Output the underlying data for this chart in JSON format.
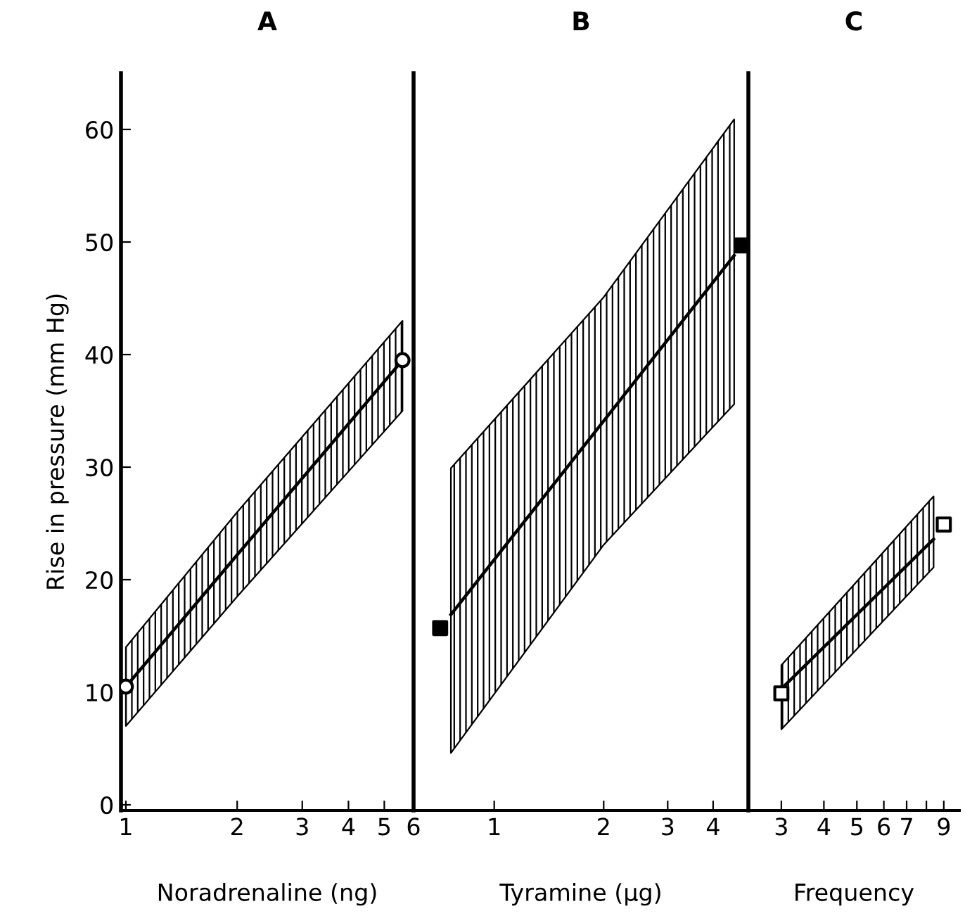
{
  "chart_data": [
    {
      "type": "line",
      "title": "A",
      "xlabel": "Noradrenaline (ng)",
      "ylabel": "Rise in pressure (mm Hg)",
      "log": "x",
      "xlim": [
        0.97,
        6
      ],
      "xticks": [
        1,
        2,
        3,
        4,
        5,
        6
      ],
      "ylim": [
        -0.5,
        65
      ],
      "yticks": [
        0,
        10,
        20,
        30,
        40,
        50,
        60
      ],
      "series": [
        {
          "type": "line",
          "color": "#000000",
          "x": [
            1,
            2,
            5.6
          ],
          "values": [
            10.5,
            22.2,
            39.5
          ],
          "lower": [
            7,
            18.5,
            35
          ],
          "upper": [
            14,
            26,
            43
          ]
        },
        {
          "type": "scatter",
          "marker": "circle",
          "color": "#ffffff",
          "x": [
            1,
            5.6
          ],
          "values": [
            10.5,
            39.5
          ]
        }
      ]
    },
    {
      "type": "line",
      "title": "B",
      "xlabel": "Tyramine (µg)",
      "log": "x",
      "xlim": [
        0.6,
        5
      ],
      "xticks": [
        1,
        2,
        3,
        4
      ],
      "ylim": [
        -0.5,
        65
      ],
      "yticks": [
        0,
        10,
        20,
        30,
        40,
        50,
        60
      ],
      "tick_labels": "x",
      "series": [
        {
          "type": "line",
          "color": "#000000",
          "x": [
            0.76,
            2,
            4.57
          ],
          "values": [
            16.9,
            34.1,
            48.8
          ],
          "lower": [
            4.6,
            23.1,
            35.6
          ],
          "upper": [
            29.9,
            45.1,
            60.9
          ]
        },
        {
          "type": "scatter",
          "marker": "square",
          "color": "#000000",
          "x": [
            0.71,
            4.8
          ],
          "values": [
            15.7,
            49.7
          ]
        }
      ]
    },
    {
      "type": "line",
      "title": "C",
      "xlabel": "Frequency",
      "log": "x",
      "xlim": [
        2.4,
        10
      ],
      "xticks": [
        3,
        4,
        5,
        6,
        7,
        {
          "value": 8,
          "label": null
        },
        9
      ],
      "ylim": [
        -0.5,
        65
      ],
      "yticks": [
        0,
        10,
        20,
        30,
        40,
        50,
        60
      ],
      "tick_labels": "x",
      "series": [
        {
          "type": "line",
          "color": "#000000",
          "x": [
            3,
            8.4
          ],
          "values": [
            10.3,
            23.6
          ],
          "lower": [
            6.7,
            21.1
          ],
          "upper": [
            12.4,
            27.4
          ]
        },
        {
          "type": "scatter",
          "marker": "square",
          "color": "#ffffff",
          "x": [
            3,
            9
          ],
          "values": [
            9.9,
            24.9
          ]
        }
      ]
    }
  ]
}
